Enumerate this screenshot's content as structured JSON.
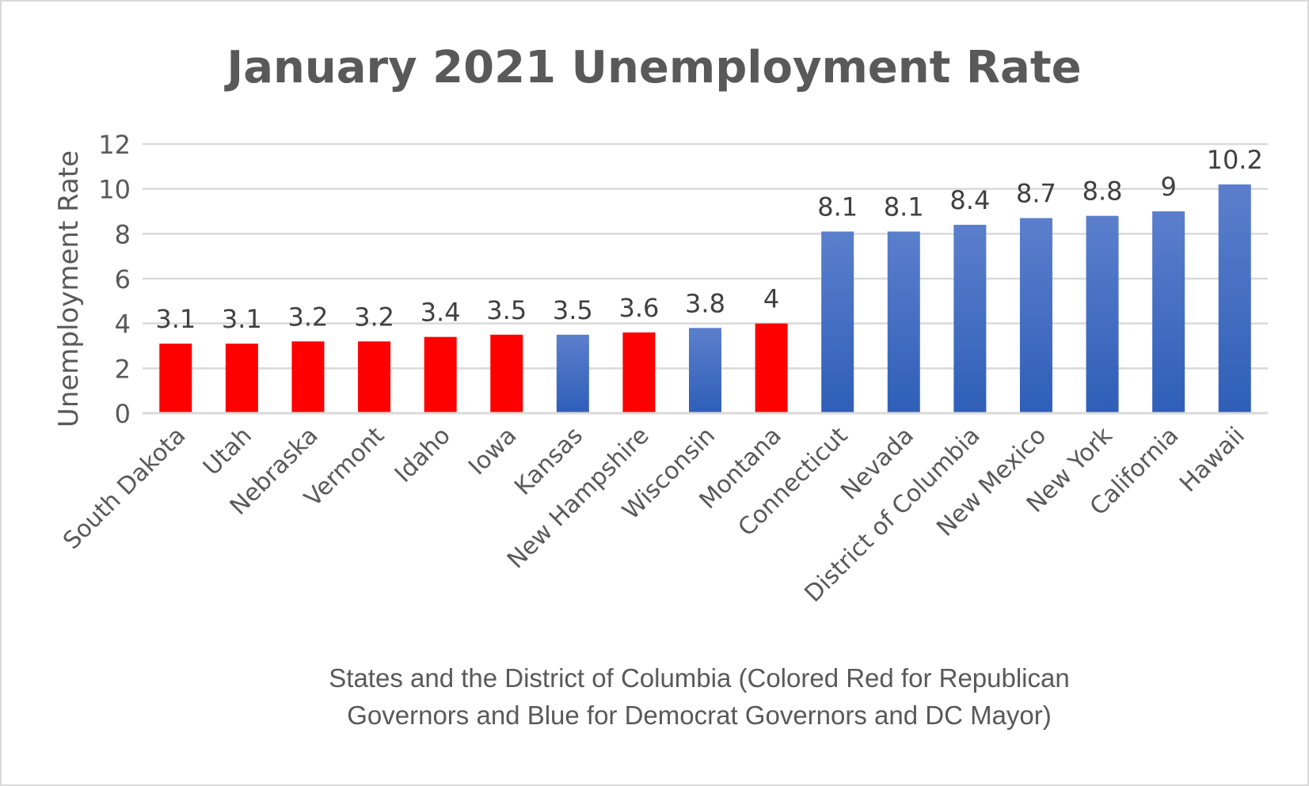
{
  "chart_data": {
    "type": "bar",
    "title": "January 2021 Unemployment Rate",
    "ylabel": "Unemployment Rate",
    "xlabel_lines": [
      "States and the District of Columbia (Colored Red for Republican",
      "Governors and Blue for Democrat Governors and DC Mayor)"
    ],
    "ylim": [
      0,
      12
    ],
    "yticks": [
      0,
      2,
      4,
      6,
      8,
      10,
      12
    ],
    "grid": true,
    "categories": [
      "South Dakota",
      "Utah",
      "Nebraska",
      "Vermont",
      "Idaho",
      "Iowa",
      "Kansas",
      "New Hampshire",
      "Wisconsin",
      "Montana",
      "Connecticut",
      "Nevada",
      "District of Columbia",
      "New Mexico",
      "New York",
      "California",
      "Hawaii"
    ],
    "values": [
      3.1,
      3.1,
      3.2,
      3.2,
      3.4,
      3.5,
      3.5,
      3.6,
      3.8,
      4,
      8.1,
      8.1,
      8.4,
      8.7,
      8.8,
      9,
      10.2
    ],
    "data_labels": [
      "3.1",
      "3.1",
      "3.2",
      "3.2",
      "3.4",
      "3.5",
      "3.5",
      "3.6",
      "3.8",
      "4",
      "8.1",
      "8.1",
      "8.4",
      "8.7",
      "8.8",
      "9",
      "10.2"
    ],
    "party": [
      "R",
      "R",
      "R",
      "R",
      "R",
      "R",
      "D",
      "R",
      "D",
      "R",
      "D",
      "D",
      "D",
      "D",
      "D",
      "D",
      "D"
    ],
    "colors": {
      "R": "#ff0000",
      "D_top": "#5b7fcc",
      "D_bottom": "#2f5fb8",
      "text": "#595959",
      "grid": "#d9d9d9"
    }
  }
}
